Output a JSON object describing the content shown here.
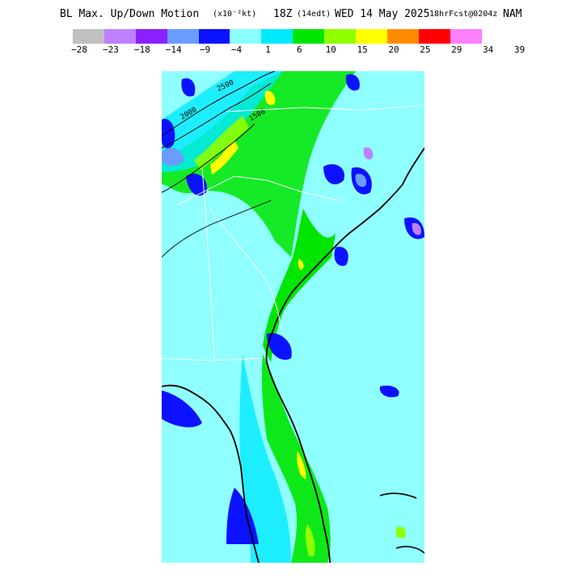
{
  "title": {
    "field": "BL Max. Up/Down Motion",
    "units": "(x10⁻²kt)",
    "valid_time": "18Z",
    "local_time": "(14edt)",
    "date": "WED 14 May 2025",
    "forecast": "18hrFcst@0204z",
    "model": "NAM"
  },
  "legend": {
    "colors": [
      "#c0c0c0",
      "#c080ff",
      "#8a20ff",
      "#6a9cff",
      "#0a12ff",
      "#8affff",
      "#00eaff",
      "#00e600",
      "#90ff00",
      "#ffff00",
      "#ff8c00",
      "#ff0000",
      "#ff80ff"
    ],
    "ticks": [
      "−28",
      "−23",
      "−18",
      "−14",
      "−9",
      "−4",
      "1",
      "6",
      "10",
      "15",
      "20",
      "25",
      "29",
      "34",
      "39"
    ]
  },
  "map": {
    "background_color": "#8fffff",
    "contour_labels": [
      "2500",
      "2000",
      "1500"
    ]
  }
}
